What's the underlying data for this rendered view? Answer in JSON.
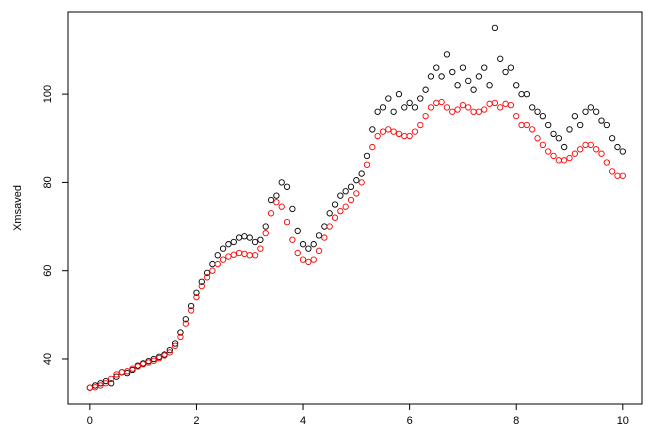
{
  "chart_data": {
    "type": "scatter",
    "y_label": "Xmsaved",
    "x": [
      0,
      0.1,
      0.2,
      0.3,
      0.4,
      0.5,
      0.6,
      0.7,
      0.8,
      0.9,
      1,
      1.1,
      1.2,
      1.3,
      1.4,
      1.5,
      1.6,
      1.7,
      1.8,
      1.9,
      2,
      2.1,
      2.2,
      2.3,
      2.4,
      2.5,
      2.6,
      2.7,
      2.8,
      2.9,
      3,
      3.1,
      3.2,
      3.3,
      3.4,
      3.5,
      3.6,
      3.7,
      3.8,
      3.9,
      4,
      4.1,
      4.2,
      4.3,
      4.4,
      4.5,
      4.6,
      4.7,
      4.8,
      4.9,
      5,
      5.1,
      5.2,
      5.3,
      5.4,
      5.5,
      5.6,
      5.7,
      5.8,
      5.9,
      6,
      6.1,
      6.2,
      6.3,
      6.4,
      6.5,
      6.6,
      6.7,
      6.8,
      6.9,
      7,
      7.1,
      7.2,
      7.3,
      7.4,
      7.5,
      7.6,
      7.7,
      7.8,
      7.9,
      8,
      8.1,
      8.2,
      8.3,
      8.4,
      8.5,
      8.6,
      8.7,
      8.8,
      8.9,
      9,
      9.1,
      9.2,
      9.3,
      9.4,
      9.5,
      9.6,
      9.7,
      9.8,
      9.9,
      10
    ],
    "series": [
      {
        "color": "#000000",
        "values": [
          33.5,
          34,
          34.5,
          35,
          34.5,
          36,
          37,
          36.8,
          37.5,
          38.5,
          39,
          39.5,
          40,
          40.5,
          41,
          42,
          43.5,
          46,
          49,
          52,
          55,
          57.5,
          59.5,
          61.5,
          63.5,
          65,
          66,
          66.5,
          67.5,
          67.8,
          67.5,
          66.5,
          67,
          70,
          76,
          77,
          80,
          79,
          74,
          69,
          66,
          65,
          66,
          68,
          70,
          73,
          75,
          77,
          78,
          79,
          80.5,
          82,
          86,
          92,
          96,
          97,
          99,
          96,
          100,
          97,
          98,
          97,
          99,
          101,
          104,
          106,
          104,
          109,
          105,
          102,
          106,
          103,
          101,
          104,
          106,
          102,
          115,
          108,
          105,
          106,
          102,
          100,
          100,
          97,
          96,
          95,
          93,
          91,
          90,
          88,
          92,
          95,
          93,
          96,
          97,
          96,
          94,
          93,
          90,
          88,
          87
        ]
      },
      {
        "color": "#ff0000",
        "values": [
          33.5,
          33.6,
          34,
          34.5,
          35.5,
          36.5,
          37,
          37.2,
          37.8,
          38.3,
          38.8,
          39.2,
          39.6,
          40.2,
          40.8,
          41.5,
          43,
          45,
          48,
          51,
          54,
          56.5,
          58.5,
          60,
          61.5,
          62.5,
          63.2,
          63.6,
          64,
          63.8,
          63.5,
          63.5,
          65,
          68.5,
          73,
          75.5,
          74.5,
          71,
          67,
          64,
          62.5,
          62,
          62.5,
          64.5,
          67.5,
          70,
          72,
          73.5,
          74.5,
          76,
          77.5,
          80,
          84,
          88,
          90.5,
          91.5,
          92,
          91.5,
          91,
          90.5,
          90.5,
          91.5,
          93,
          95,
          97,
          98,
          98.2,
          97,
          96,
          96.5,
          97.5,
          97,
          96,
          96,
          96.5,
          97.8,
          98,
          97,
          97.8,
          97.5,
          95,
          93,
          93,
          92,
          90,
          88.5,
          87,
          86,
          85,
          85,
          85.5,
          86.5,
          87.5,
          88.5,
          88.5,
          87.5,
          86.5,
          84.5,
          82.5,
          81.5,
          81.5
        ]
      }
    ],
    "xlim": [
      -0.41,
      10.36
    ],
    "ylim": [
      29.8,
      118.6
    ],
    "xticks": [
      0,
      2,
      4,
      6,
      8,
      10
    ],
    "yticks": [
      40,
      60,
      80,
      100
    ]
  }
}
